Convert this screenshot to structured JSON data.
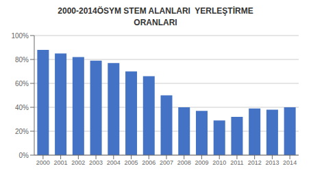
{
  "chart_data": {
    "type": "bar",
    "title": "2000-2014ÖSYM STEM ALANLARI  YERLEŞTİRME\nORANLARI",
    "categories": [
      "2000",
      "2001",
      "2002",
      "2003",
      "2004",
      "2005",
      "2006",
      "2007",
      "2008",
      "2009",
      "2010",
      "2011",
      "2012",
      "2013",
      "2014"
    ],
    "values": [
      0.88,
      0.85,
      0.82,
      0.79,
      0.77,
      0.7,
      0.66,
      0.5,
      0.4,
      0.37,
      0.29,
      0.32,
      0.39,
      0.38,
      0.4
    ],
    "color": "#4472C4",
    "ylim": [
      0,
      1.0
    ],
    "yticks": [
      {
        "value": 0.0,
        "label": "0%"
      },
      {
        "value": 0.2,
        "label": "20%"
      },
      {
        "value": 0.4,
        "label": "40%"
      },
      {
        "value": 0.6,
        "label": "60%"
      },
      {
        "value": 0.8,
        "label": "80%"
      },
      {
        "value": 1.0,
        "label": "100%"
      }
    ],
    "grid": true
  }
}
